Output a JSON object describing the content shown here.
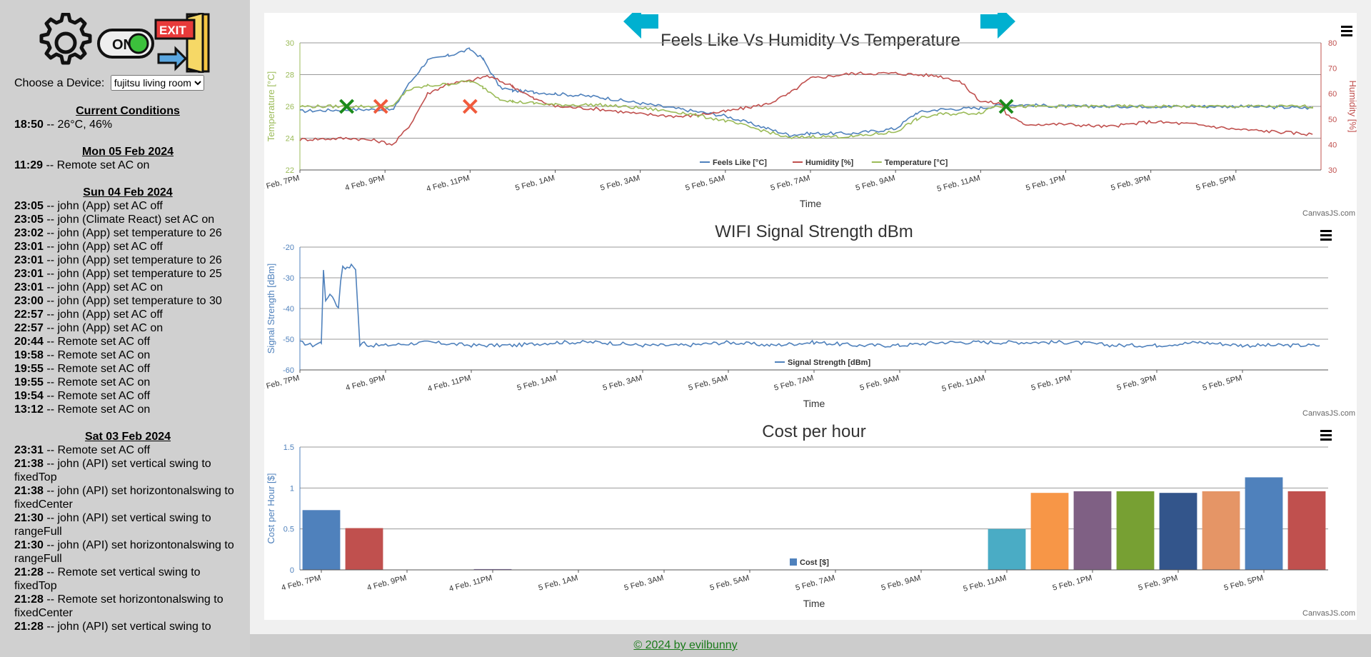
{
  "sidebar": {
    "icons": [
      "gear-icon",
      "power-toggle-icon",
      "exit-door-icon"
    ],
    "toggle_text": "ON",
    "exit_text": "EXIT",
    "device_label": "Choose a Device:",
    "device_selected": "fujitsu living room",
    "groups": [
      {
        "title": "Current Conditions",
        "entries": [
          {
            "time": "18:50",
            "text": " -- 26°C, 46%"
          }
        ]
      },
      {
        "title": "Mon 05 Feb 2024",
        "entries": [
          {
            "time": "11:29",
            "text": " -- Remote set AC on"
          }
        ]
      },
      {
        "title": "Sun 04 Feb 2024",
        "entries": [
          {
            "time": "23:05",
            "text": " -- john (App) set AC off"
          },
          {
            "time": "23:05",
            "text": " -- john (Climate React) set AC on"
          },
          {
            "time": "23:02",
            "text": " -- john (App) set temperature to 26"
          },
          {
            "time": "23:01",
            "text": " -- john (App) set AC off"
          },
          {
            "time": "23:01",
            "text": " -- john (App) set temperature to 26"
          },
          {
            "time": "23:01",
            "text": " -- john (App) set temperature to 25"
          },
          {
            "time": "23:01",
            "text": " -- john (App) set AC on"
          },
          {
            "time": "23:00",
            "text": " -- john (App) set temperature to 30"
          },
          {
            "time": "22:57",
            "text": " -- john (App) set AC off"
          },
          {
            "time": "22:57",
            "text": " -- john (App) set AC on"
          },
          {
            "time": "20:44",
            "text": " -- Remote set AC off"
          },
          {
            "time": "19:58",
            "text": " -- Remote set AC on"
          },
          {
            "time": "19:55",
            "text": " -- Remote set AC off"
          },
          {
            "time": "19:55",
            "text": " -- Remote set AC on"
          },
          {
            "time": "19:54",
            "text": " -- Remote set AC off"
          },
          {
            "time": "13:12",
            "text": " -- Remote set AC on"
          }
        ]
      },
      {
        "title": "Sat 03 Feb 2024",
        "entries": [
          {
            "time": "23:31",
            "text": " -- Remote set AC off"
          },
          {
            "time": "21:38",
            "text": " -- john (API) set vertical swing to fixedTop"
          },
          {
            "time": "21:38",
            "text": " -- john (API) set horizontonalswing to fixedCenter"
          },
          {
            "time": "21:30",
            "text": " -- john (API) set vertical swing to rangeFull"
          },
          {
            "time": "21:30",
            "text": " -- john (API) set horizontonalswing to rangeFull"
          },
          {
            "time": "21:28",
            "text": " -- Remote set vertical swing to fixedTop"
          },
          {
            "time": "21:28",
            "text": " -- Remote set horizontonalswing to fixedCenter"
          },
          {
            "time": "21:28",
            "text": " -- john (API) set vertical swing to"
          }
        ]
      }
    ]
  },
  "nav": {
    "prev_icon": "arrow-left-icon",
    "next_icon": "arrow-right-icon"
  },
  "credit": "CanvasJS.com",
  "footer": "© 2024 by evilbunny",
  "colors": {
    "feels": "#4f81bc",
    "humidity": "#c0504e",
    "temperature": "#9bbb58",
    "accent": "#00b0d0"
  },
  "chart_data": [
    {
      "type": "line",
      "title": "Feels Like Vs Humidity Vs Temperature",
      "xlabel": "Time",
      "ylabel": "Temperature [°C]",
      "y2label": "Humidity [%]",
      "ylim": [
        22,
        30
      ],
      "y2lim": [
        30,
        80
      ],
      "yticks": [
        "22",
        "24",
        "26",
        "28",
        "30"
      ],
      "y2ticks": [
        "30",
        "40",
        "50",
        "60",
        "70",
        "80"
      ],
      "xticks": [
        "4 Feb, 7PM",
        "4 Feb, 9PM",
        "4 Feb, 11PM",
        "5 Feb, 1AM",
        "5 Feb, 3AM",
        "5 Feb, 5AM",
        "5 Feb, 7AM",
        "5 Feb, 9AM",
        "5 Feb, 11AM",
        "5 Feb, 1PM",
        "5 Feb, 3PM",
        "5 Feb, 5PM"
      ],
      "x_hours": [
        0,
        2,
        4,
        6,
        8,
        10,
        12,
        14,
        16,
        18,
        20,
        22
      ],
      "legend": "bottom",
      "series": [
        {
          "name": "Feels Like [°C]",
          "color": "#4f81bc",
          "axis": "left",
          "x": [
            0,
            1.2,
            2.2,
            2.5,
            3,
            3.5,
            4,
            4.3,
            4.7,
            5,
            5.5,
            6,
            7,
            8,
            9,
            10,
            11,
            11.5,
            12,
            13,
            14,
            14.5,
            15,
            16,
            16.3,
            16.5,
            17,
            18,
            20,
            22,
            23.8
          ],
          "y": [
            25.7,
            25.8,
            25.8,
            27.2,
            28.9,
            29.2,
            29.6,
            29.0,
            27.2,
            27.0,
            26.9,
            26.8,
            26.6,
            26.2,
            25.8,
            25.4,
            24.6,
            24.2,
            24.3,
            24.3,
            24.6,
            25.6,
            25.8,
            25.9,
            26.0,
            26.1,
            26.1,
            26.0,
            26.0,
            26.0,
            25.9
          ]
        },
        {
          "name": "Humidity [%]",
          "color": "#c0504e",
          "axis": "right",
          "x": [
            0,
            1.2,
            1.8,
            2.2,
            2.6,
            3,
            3.5,
            4,
            4.4,
            5,
            5.5,
            6,
            7,
            8,
            9,
            10,
            11,
            11.5,
            12,
            13,
            14,
            15,
            15.5,
            16,
            16.5,
            16.6,
            17,
            18,
            19,
            20,
            21,
            22,
            23,
            23.8
          ],
          "y": [
            42,
            42.5,
            41.5,
            40,
            48,
            60,
            64,
            65,
            67,
            63,
            58,
            55,
            54,
            52,
            51,
            53,
            56,
            60,
            66,
            68,
            68,
            67,
            65,
            57,
            56,
            52,
            48,
            48,
            47,
            49,
            48,
            46,
            45,
            44
          ]
        },
        {
          "name": "Temperature [°C]",
          "color": "#9bbb58",
          "axis": "left",
          "x": [
            0,
            1.2,
            2.2,
            2.5,
            3,
            3.5,
            4,
            4.3,
            4.7,
            5,
            5.5,
            6,
            7,
            8,
            9,
            10,
            11,
            11.5,
            12,
            13,
            14,
            14.5,
            15,
            16,
            16.3,
            16.5,
            17,
            18,
            20,
            22,
            23.8
          ],
          "y": [
            26.0,
            26.0,
            26.0,
            27.0,
            27.3,
            27.4,
            27.6,
            27.2,
            26.5,
            26.3,
            26.2,
            26.1,
            26.1,
            25.9,
            25.6,
            25.1,
            24.4,
            24.0,
            24.1,
            24.1,
            24.4,
            25.2,
            25.5,
            25.6,
            26.0,
            26.0,
            26.0,
            26.0,
            26.0,
            26.0,
            26.0
          ]
        }
      ],
      "markers": [
        {
          "x": 1.1,
          "kind": "on"
        },
        {
          "x": 1.9,
          "kind": "off"
        },
        {
          "x": 4.0,
          "kind": "off"
        },
        {
          "x": 16.6,
          "kind": "on"
        }
      ]
    },
    {
      "type": "line",
      "title": "WIFI Signal Strength dBm",
      "xlabel": "Time",
      "ylabel": "Signal Strength [dBm]",
      "ylim": [
        -60,
        -20
      ],
      "yticks": [
        "-60",
        "-50",
        "-40",
        "-30",
        "-20"
      ],
      "xticks": [
        "4 Feb, 7PM",
        "4 Feb, 9PM",
        "4 Feb, 11PM",
        "5 Feb, 1AM",
        "5 Feb, 3AM",
        "5 Feb, 5AM",
        "5 Feb, 7AM",
        "5 Feb, 9AM",
        "5 Feb, 11AM",
        "5 Feb, 1PM",
        "5 Feb, 3PM",
        "5 Feb, 5PM"
      ],
      "x_hours": [
        0,
        2,
        4,
        6,
        8,
        10,
        12,
        14,
        16,
        18,
        20,
        22
      ],
      "legend": "bottom",
      "series": [
        {
          "name": "Signal Strength [dBm]",
          "color": "#4f81bc",
          "x": [
            0,
            0.3,
            0.5,
            0.55,
            0.6,
            0.7,
            0.8,
            0.9,
            0.95,
            1.0,
            1.1,
            1.2,
            1.3,
            1.4,
            1.5,
            1.6,
            2,
            3,
            4,
            5,
            6,
            7,
            8,
            9,
            10,
            11,
            12,
            13,
            14,
            15,
            16,
            17,
            18,
            19,
            20,
            21,
            22,
            23,
            23.8
          ],
          "y": [
            -51,
            -52,
            -51,
            -27,
            -38,
            -35,
            -37,
            -40,
            -31,
            -26,
            -27,
            -26,
            -27,
            -52,
            -51,
            -52,
            -52,
            -51,
            -52,
            -52,
            -51,
            -51,
            -52,
            -52,
            -51,
            -52,
            -51,
            -52,
            -52,
            -51,
            -51,
            -51,
            -51,
            -52,
            -52,
            -51,
            -52,
            -52,
            -52
          ]
        }
      ]
    },
    {
      "type": "bar",
      "title": "Cost per hour",
      "xlabel": "Time",
      "ylabel": "Cost per Hour [$]",
      "ylim": [
        0,
        1.5
      ],
      "yticks": [
        "0",
        "0.5",
        "1",
        "1.5"
      ],
      "xticks": [
        "4 Feb, 7PM",
        "4 Feb, 9PM",
        "4 Feb, 11PM",
        "5 Feb, 1AM",
        "5 Feb, 3AM",
        "5 Feb, 5AM",
        "5 Feb, 7AM",
        "5 Feb, 9AM",
        "5 Feb, 11AM",
        "5 Feb, 1PM",
        "5 Feb, 3PM",
        "5 Feb, 5PM"
      ],
      "x_hours": [
        0,
        2,
        4,
        6,
        8,
        10,
        12,
        14,
        16,
        18,
        20,
        22
      ],
      "legend": "bottom",
      "series": [
        {
          "name": "Cost [$]",
          "color": "#4f81bc"
        }
      ],
      "bars": [
        {
          "x": 0,
          "value": 0.73,
          "color": "#4f81bc"
        },
        {
          "x": 1,
          "value": 0.51,
          "color": "#c0504e"
        },
        {
          "x": 2,
          "value": 0,
          "color": "#9bbb58"
        },
        {
          "x": 3,
          "value": 0,
          "color": "#23bfaa"
        },
        {
          "x": 4,
          "value": 0.01,
          "color": "#8064a1"
        },
        {
          "x": 5,
          "value": 0,
          "color": "#4aacc5"
        },
        {
          "x": 6,
          "value": 0,
          "color": "#f79647"
        },
        {
          "x": 7,
          "value": 0,
          "color": "#33558b"
        },
        {
          "x": 8,
          "value": 0,
          "color": "#4f81bc"
        },
        {
          "x": 9,
          "value": 0,
          "color": "#c0504e"
        },
        {
          "x": 10,
          "value": 0,
          "color": "#9bbb58"
        },
        {
          "x": 11,
          "value": 0,
          "color": "#23bfaa"
        },
        {
          "x": 12,
          "value": 0,
          "color": "#8064a1"
        },
        {
          "x": 13,
          "value": 0,
          "color": "#4aacc5"
        },
        {
          "x": 14,
          "value": 0,
          "color": "#f79647"
        },
        {
          "x": 15,
          "value": 0,
          "color": "#33558b"
        },
        {
          "x": 16,
          "value": 0.5,
          "color": "#4aacc5"
        },
        {
          "x": 17,
          "value": 0.94,
          "color": "#f79647"
        },
        {
          "x": 18,
          "value": 0.96,
          "color": "#7f6084"
        },
        {
          "x": 19,
          "value": 0.96,
          "color": "#77a033"
        },
        {
          "x": 20,
          "value": 0.94,
          "color": "#33558b"
        },
        {
          "x": 21,
          "value": 0.96,
          "color": "#e59566"
        },
        {
          "x": 22,
          "value": 1.13,
          "color": "#4f81bc"
        },
        {
          "x": 23,
          "value": 0.96,
          "color": "#c0504e"
        }
      ]
    }
  ]
}
